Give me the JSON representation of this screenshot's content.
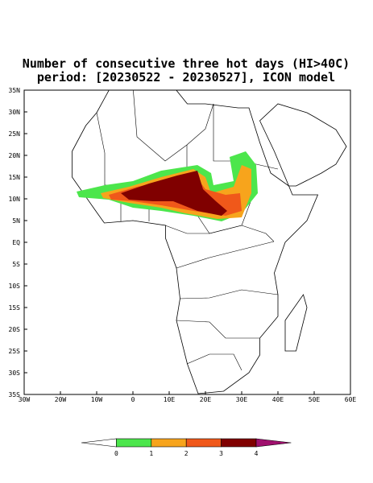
{
  "title": [
    "Number of consecutive three hot days (HI>40C)",
    "period: [20230522 - 20230527], ICON model"
  ],
  "lat_labels": [
    "35N",
    "30N",
    "25N",
    "20N",
    "15N",
    "10N",
    "5N",
    "EQ",
    "5S",
    "10S",
    "15S",
    "20S",
    "25S",
    "30S",
    "35S"
  ],
  "lon_labels": [
    "30W",
    "20W",
    "10W",
    "0",
    "10E",
    "20E",
    "30E",
    "40E",
    "50E",
    "60E"
  ],
  "colorbar": {
    "labels": [
      "0",
      "1",
      "2",
      "3",
      "4"
    ],
    "colors": [
      "#ffffff",
      "#4ce64c",
      "#f7a41c",
      "#f0581a",
      "#800000",
      "#a0106e"
    ]
  }
}
